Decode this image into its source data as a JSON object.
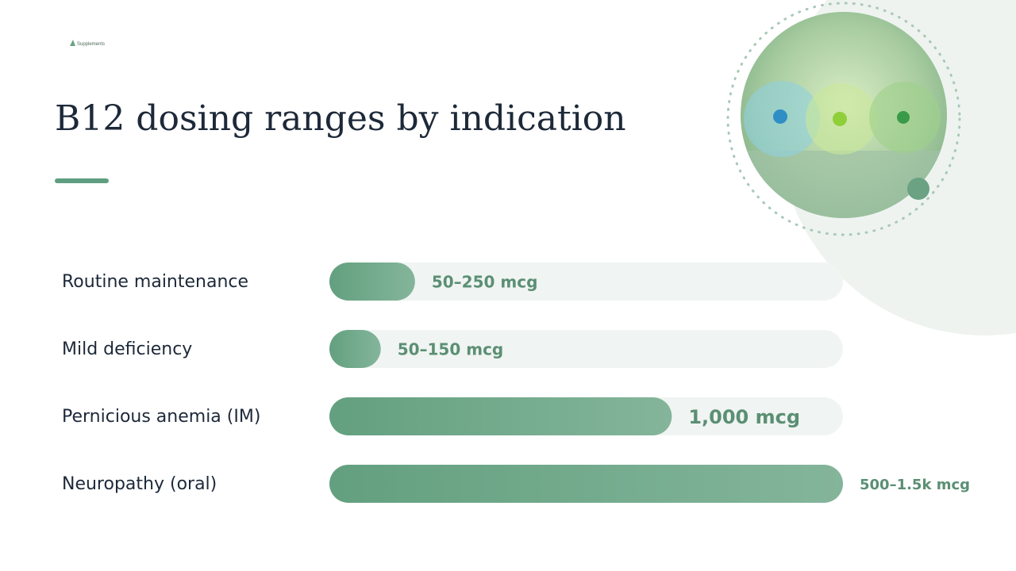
{
  "logo": "Supplements",
  "chart_data": {
    "type": "bar",
    "orientation": "horizontal",
    "title": "B12 dosing ranges by indication",
    "categories": [
      "Routine maintenance",
      "Mild deficiency",
      "Pernicious anemia (IM)",
      "Neuropathy (oral)"
    ],
    "values": [
      250,
      150,
      1000,
      1500
    ],
    "value_labels": [
      "50–250 mcg",
      "50–150 mcg",
      "1,000 mcg",
      "500–1.5k mcg"
    ],
    "xlim": [
      0,
      1500
    ],
    "color": "#6aa283"
  }
}
